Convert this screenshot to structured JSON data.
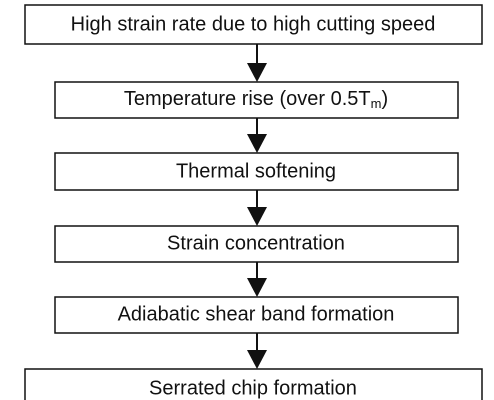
{
  "nodes": [
    {
      "label": "High strain rate due to high cutting speed"
    },
    {
      "label": "Temperature rise (over 0.5T",
      "subscript": "m",
      "suffix": ")"
    },
    {
      "label": "Thermal softening"
    },
    {
      "label": "Strain concentration"
    },
    {
      "label": "Adiabatic shear band formation"
    },
    {
      "label": "Serrated chip formation"
    }
  ]
}
